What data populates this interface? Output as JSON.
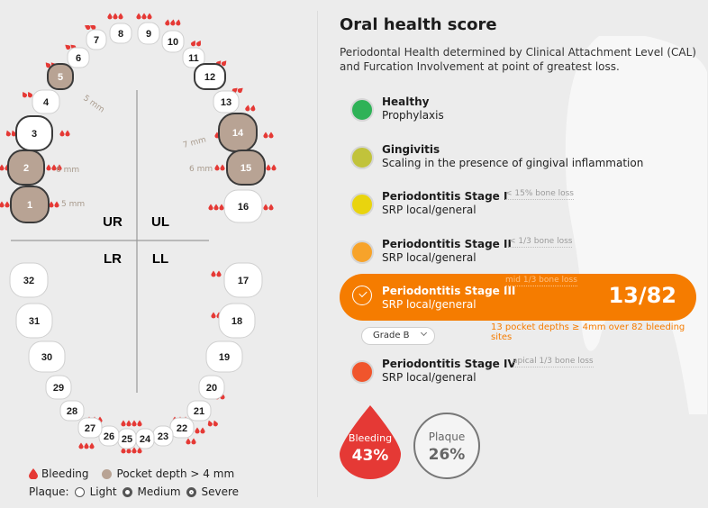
{
  "panel": {
    "title": "Oral health score",
    "description": "Periodontal Health determined by Clinical Attachment Level (CAL) and Furcation Involvement at point of greatest loss.",
    "stages": [
      {
        "name": "Healthy",
        "sub": "Prophylaxis",
        "note": "",
        "color": "#2fb257"
      },
      {
        "name": "Gingivitis",
        "sub": "Scaling in the presence of gingival inflammation",
        "note": "",
        "color": "#c1c33b"
      },
      {
        "name": "Periodontitis Stage I",
        "sub": "SRP local/general",
        "note": "< 15% bone loss",
        "color": "#e9d40e"
      },
      {
        "name": "Periodontitis Stage II",
        "sub": "SRP local/general",
        "note": "< 1/3 bone loss",
        "color": "#f7a32a"
      },
      {
        "name": "Periodontitis Stage III",
        "sub": "SRP local/general",
        "note": "mid 1/3 bone loss",
        "color": "#f57c00"
      },
      {
        "name": "Periodontitis Stage IV",
        "sub": "SRP local/general",
        "note": "apical 1/3 bone loss",
        "color": "#f0552c"
      }
    ],
    "score": "13/82",
    "score_note": "13 pocket depths ≥ 4mm over 82 bleeding sites",
    "grade": "Grade B",
    "bleeding": {
      "label": "Bleeding",
      "value": "43%"
    },
    "plaque": {
      "label": "Plaque",
      "value": "26%"
    }
  },
  "chart": {
    "quadrants": [
      "UR",
      "UL",
      "LR",
      "LL"
    ],
    "teeth": [
      "1",
      "2",
      "3",
      "4",
      "5",
      "6",
      "7",
      "8",
      "9",
      "10",
      "11",
      "12",
      "13",
      "14",
      "15",
      "16",
      "17",
      "18",
      "19",
      "20",
      "21",
      "22",
      "23",
      "24",
      "25",
      "26",
      "27",
      "28",
      "29",
      "30",
      "31",
      "32"
    ],
    "pockets": [
      "5 mm",
      "6 mm",
      "5 mm",
      "7 mm",
      "6 mm"
    ],
    "legend": {
      "bleeding": "Bleeding",
      "pocket": "Pocket depth > 4 mm",
      "plaque_label": "Plaque:",
      "light": "Light",
      "medium": "Medium",
      "severe": "Severe"
    },
    "colors": {
      "bleed": "#e53935",
      "pocket": "#b8a394",
      "tooth": "#ffffff"
    }
  }
}
